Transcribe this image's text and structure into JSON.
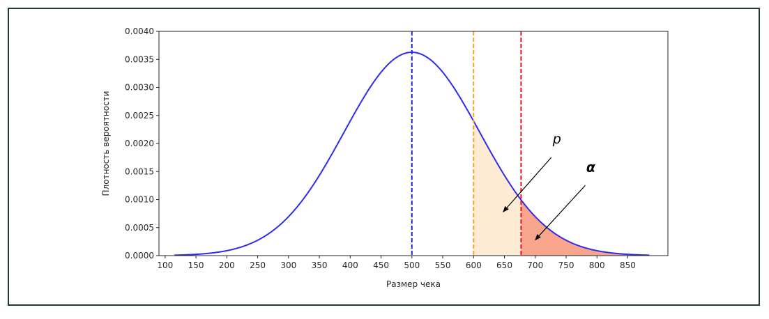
{
  "chart_data": {
    "type": "line",
    "title": "",
    "xlabel": "Размер чека",
    "ylabel": "Плотность вероятности",
    "xlim": [
      90,
      915
    ],
    "ylim": [
      0,
      0.004
    ],
    "x_ticks": [
      100,
      150,
      200,
      250,
      300,
      350,
      400,
      450,
      500,
      550,
      600,
      650,
      700,
      750,
      800,
      850
    ],
    "y_ticks": [
      "0.0000",
      "0.0005",
      "0.0010",
      "0.0015",
      "0.0020",
      "0.0025",
      "0.0030",
      "0.0035",
      "0.0040"
    ],
    "grid": false,
    "distribution": {
      "kind": "normal",
      "mean": 500,
      "sd": 110,
      "x_range": [
        115,
        885
      ]
    },
    "vlines": [
      {
        "x": 500,
        "color": "#2020ee",
        "style": "dashed"
      },
      {
        "x": 600,
        "color": "#f5a623",
        "style": "dashed"
      },
      {
        "x": 677,
        "color": "#e8141c",
        "style": "dashed"
      }
    ],
    "fills": [
      {
        "from": 600,
        "to": 677,
        "color": "#fdebd3"
      },
      {
        "from": 677,
        "to": 885,
        "color": "#f9a48c"
      }
    ],
    "annotations": [
      {
        "text": "p",
        "style": "italic",
        "text_at": [
          735,
          0.002
        ],
        "arrow_to": [
          648,
          0.00078
        ]
      },
      {
        "text": "α",
        "style": "bold-italic",
        "text_at": [
          790,
          0.0015
        ],
        "arrow_to": [
          700,
          0.00028
        ]
      }
    ],
    "colors": {
      "curve": "#2c2cf0",
      "axis": "#262626"
    }
  }
}
